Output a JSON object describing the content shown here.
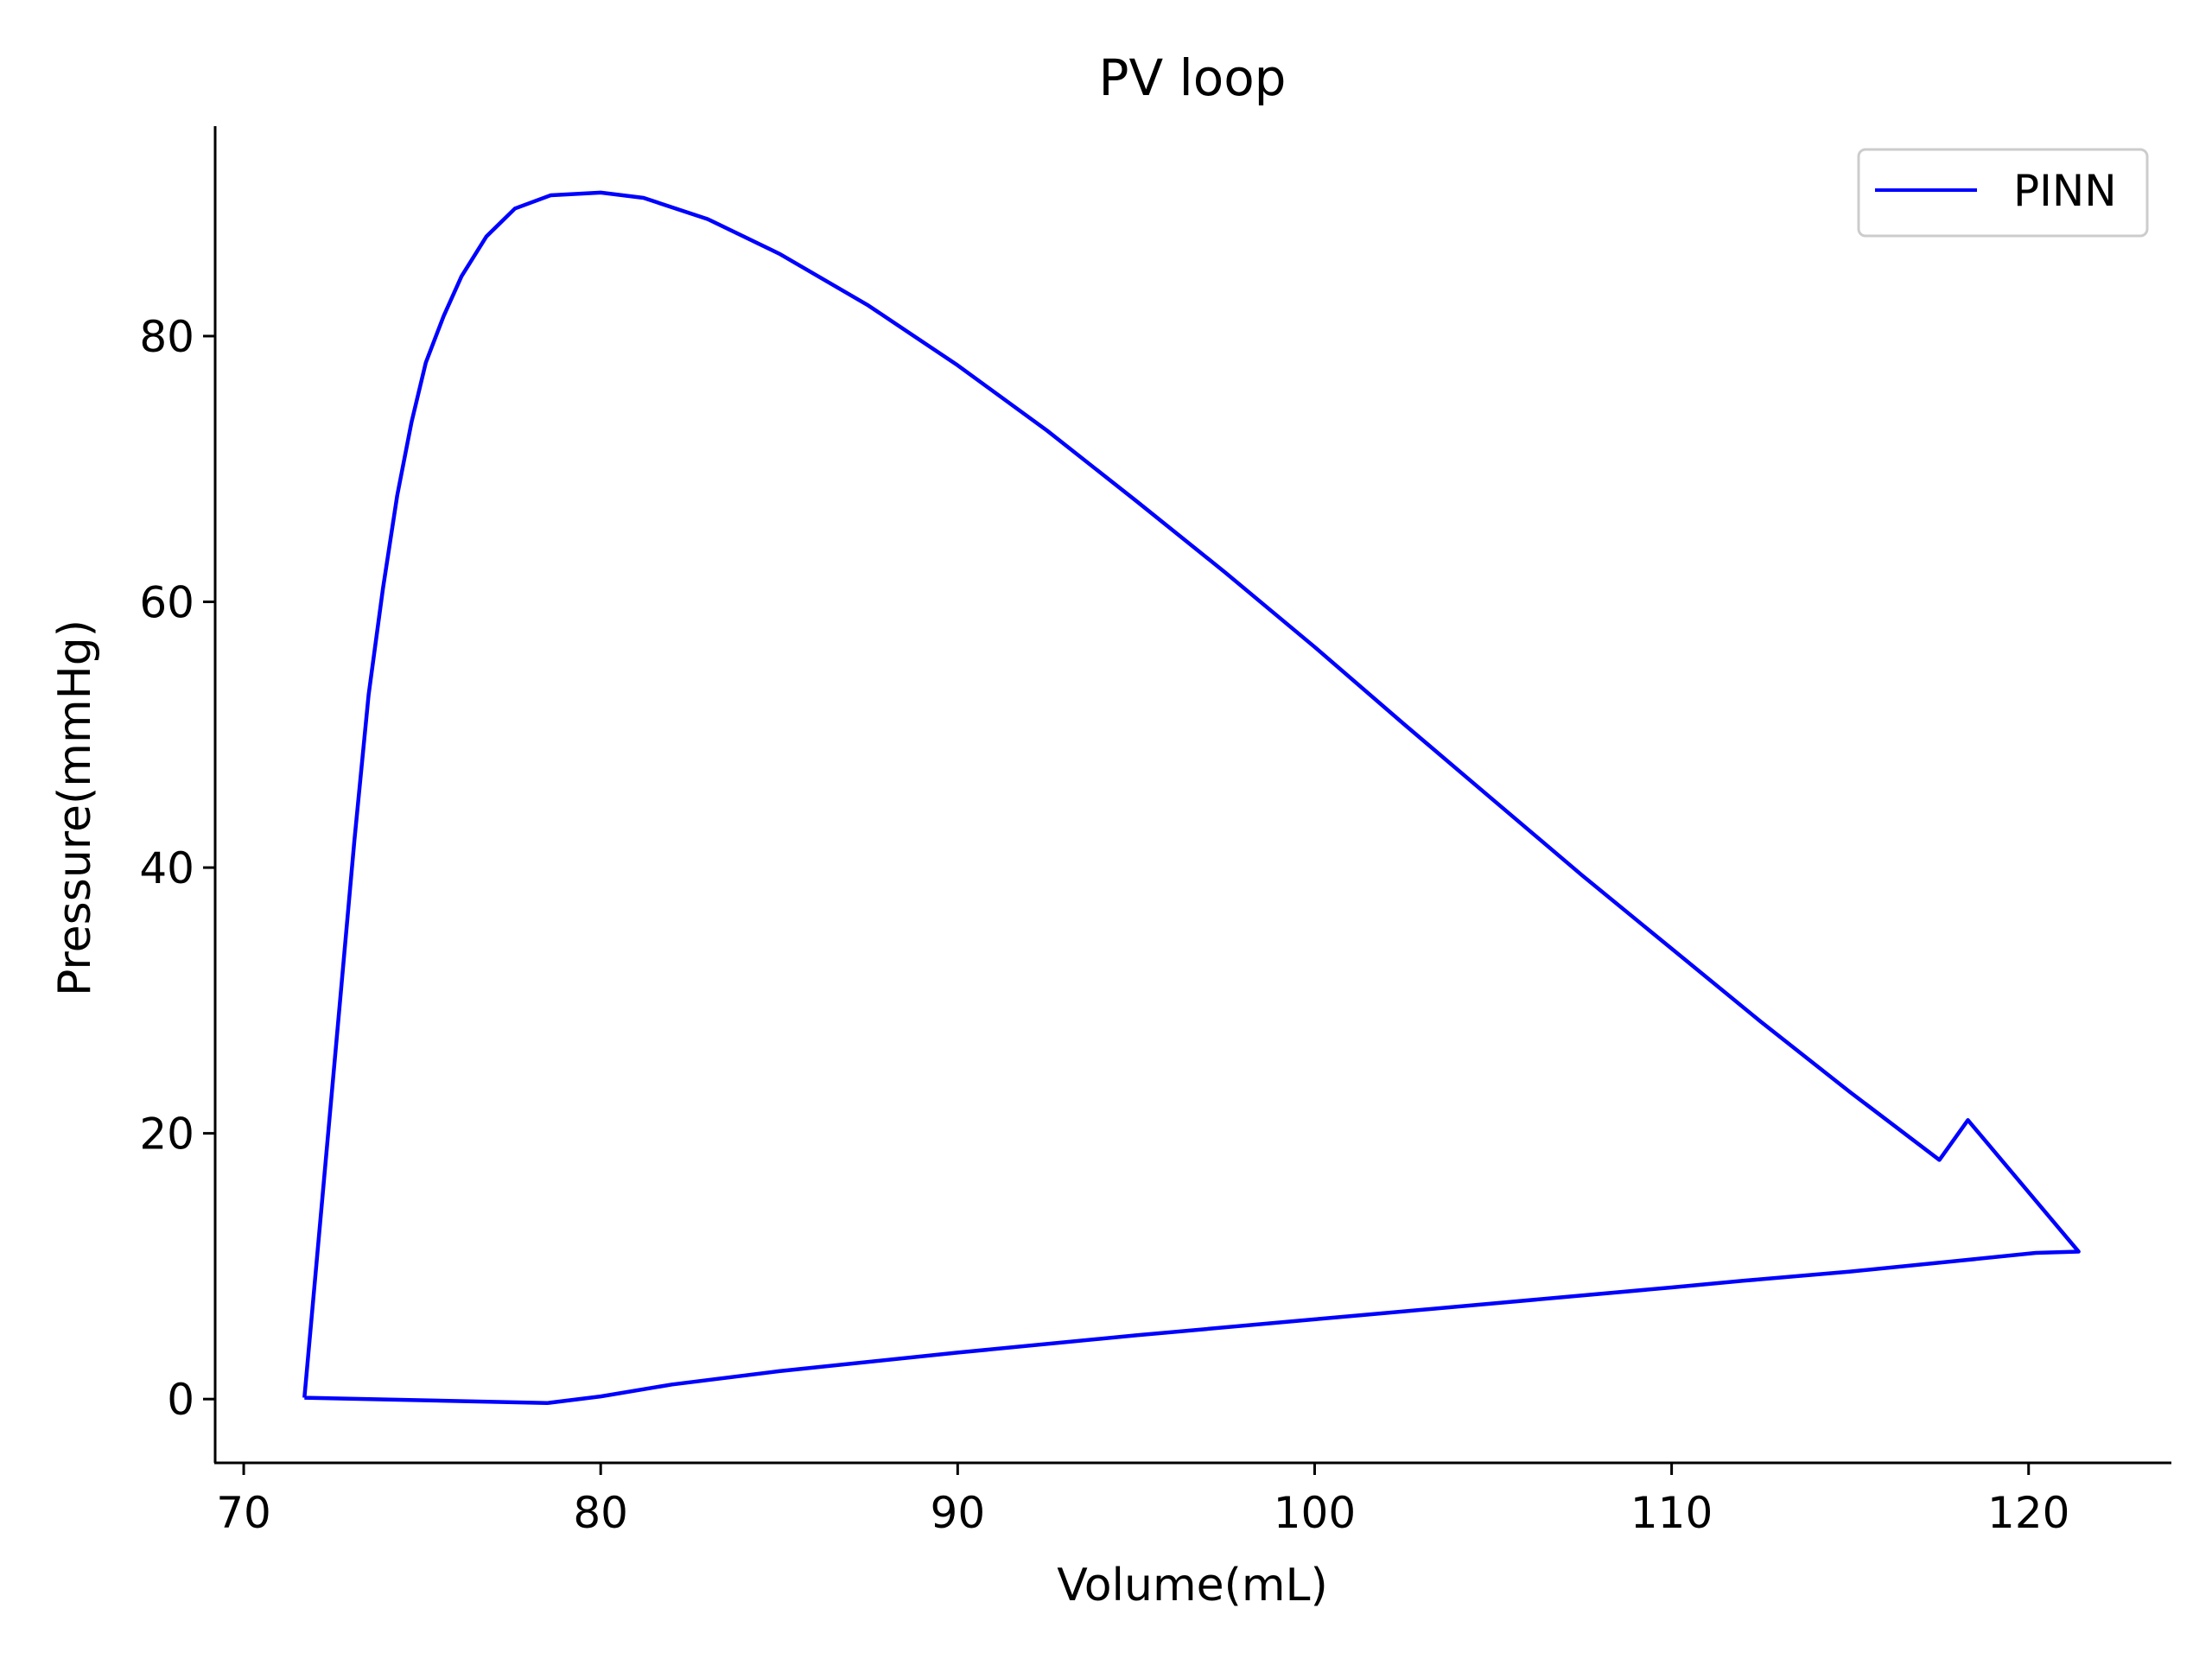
{
  "chart_data": {
    "type": "line",
    "title": "PV loop",
    "xlabel": "Volume(mL)",
    "ylabel": "Pressure(mmHg)",
    "xlim": [
      69.2,
      124
    ],
    "ylim": [
      -4.8,
      95.8
    ],
    "xticks": [
      70,
      80,
      90,
      100,
      110,
      120
    ],
    "yticks": [
      0,
      20,
      40,
      60,
      80
    ],
    "grid": false,
    "legend_position": "top-right",
    "series": [
      {
        "name": "PINN",
        "color": "#0000ff",
        "x": [
          71.7,
          72.2,
          72.7,
          73.1,
          73.5,
          73.9,
          74.3,
          74.7,
          75.1,
          75.6,
          76.1,
          76.8,
          77.6,
          78.6,
          80.0,
          81.2,
          83.0,
          85.0,
          87.5,
          90.0,
          92.5,
          95.0,
          97.5,
          100.0,
          102.5,
          105.0,
          107.5,
          110.0,
          112.5,
          115.0,
          117.5,
          118.3,
          121.4,
          120.2,
          118.0,
          115.0,
          112.0,
          110.0,
          105.0,
          100.0,
          95.0,
          90.0,
          85.0,
          82.0,
          80.0,
          78.5,
          71.7
        ],
        "y": [
          0.1,
          15,
          30,
          42,
          53,
          61,
          68,
          73.5,
          78,
          81.5,
          84.5,
          87.5,
          89.6,
          90.6,
          90.8,
          90.4,
          88.8,
          86.2,
          82.3,
          77.8,
          72.9,
          67.6,
          62.2,
          56.6,
          50.8,
          45.1,
          39.4,
          33.9,
          28.4,
          23.1,
          18.0,
          21.0,
          11.1,
          11.0,
          10.4,
          9.6,
          8.9,
          8.4,
          7.2,
          6.0,
          4.8,
          3.5,
          2.1,
          1.1,
          0.2,
          -0.3,
          0.1
        ]
      }
    ]
  }
}
